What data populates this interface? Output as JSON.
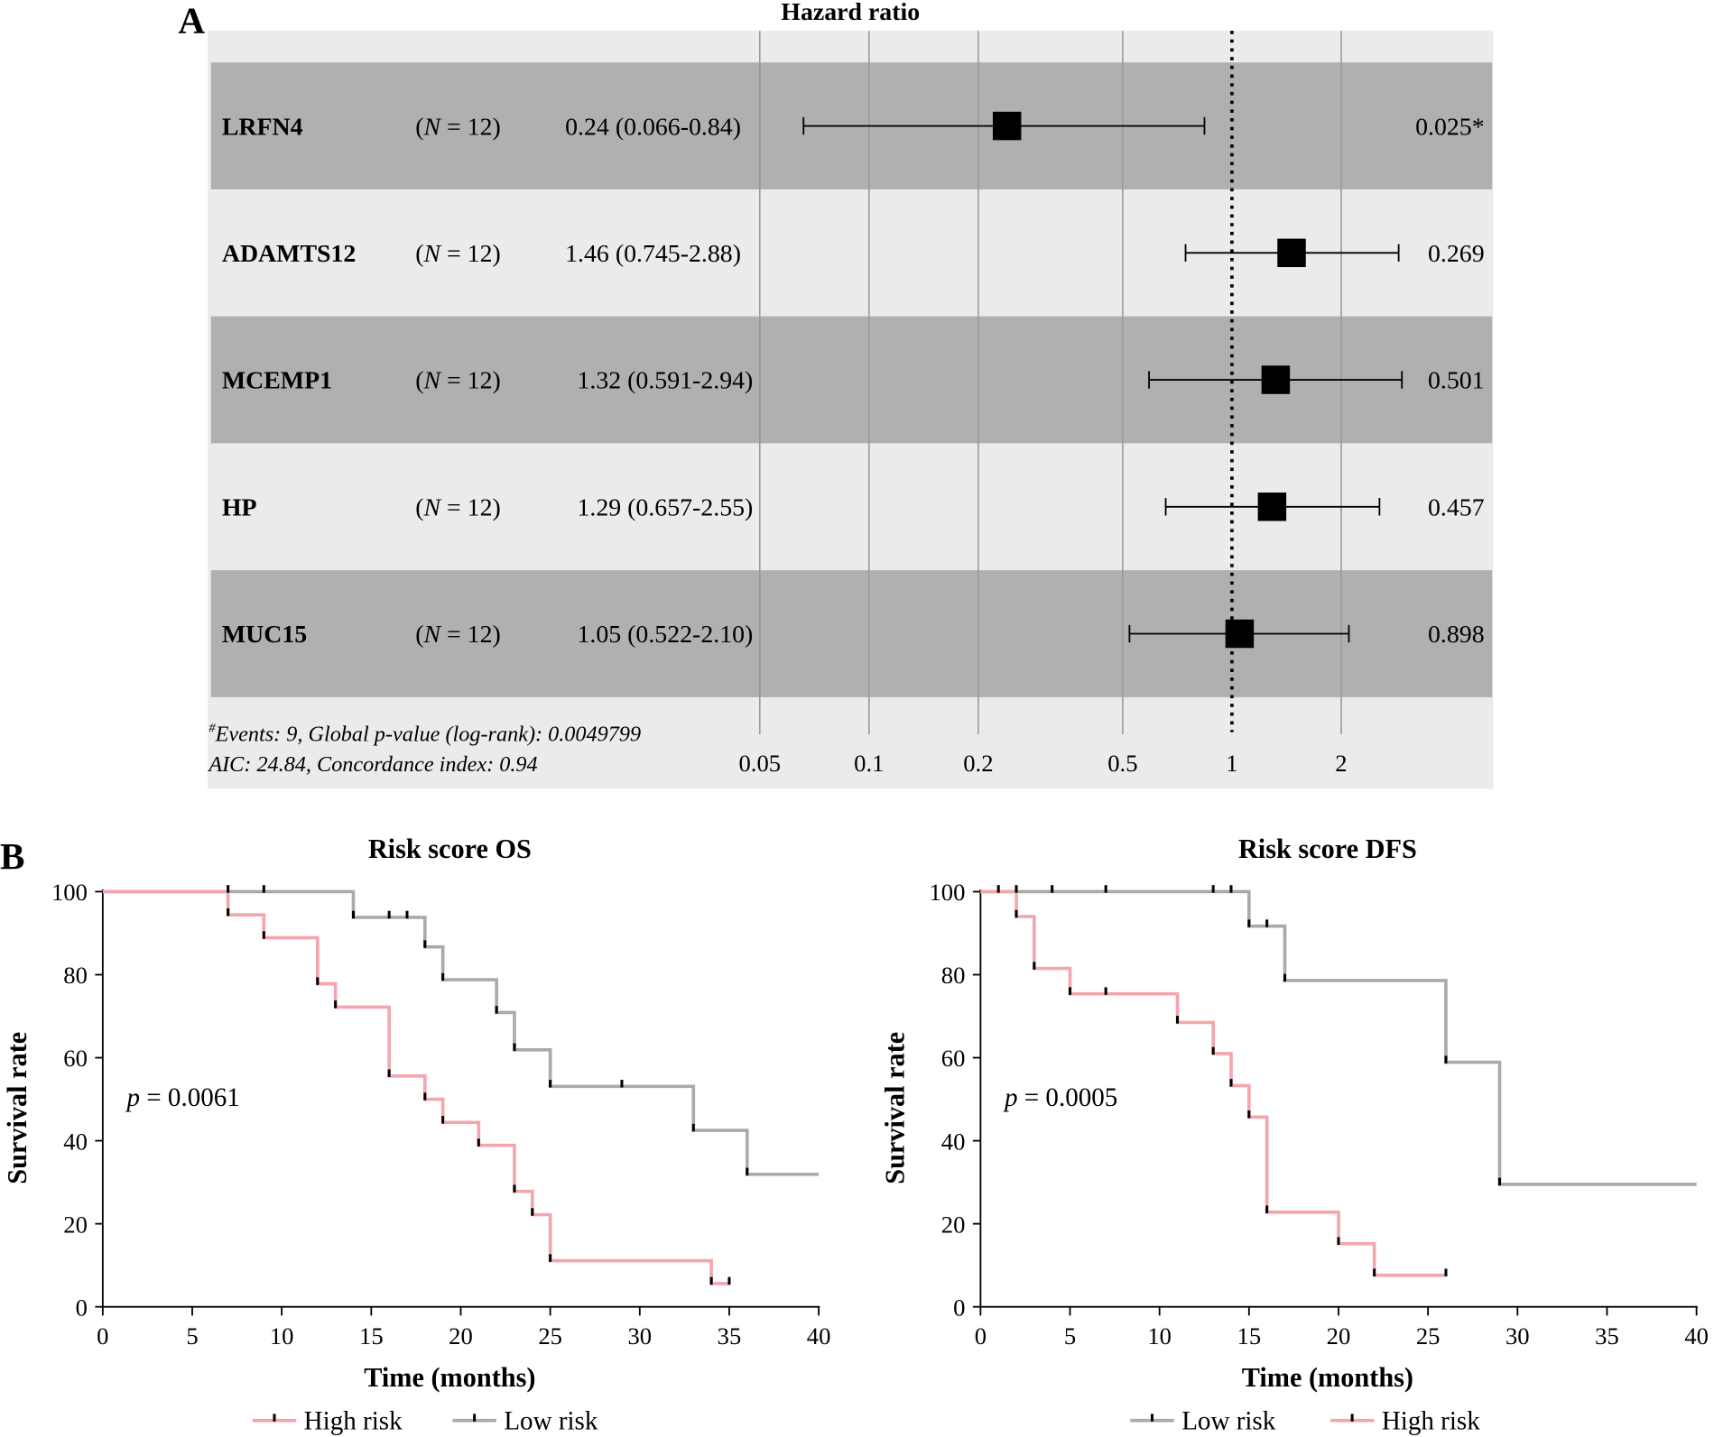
{
  "chart_data": [
    {
      "type": "forest",
      "panel_label": "A",
      "title": "Hazard ratio",
      "x_scale": "log",
      "xticks": [
        "0.05",
        "0.1",
        "0.2",
        "0.5",
        "1",
        "2"
      ],
      "xtick_values": [
        0.05,
        0.1,
        0.2,
        0.5,
        1,
        2
      ],
      "reference_line": 1,
      "rows": [
        {
          "gene": "LRFN4",
          "n": "12",
          "hr_text": "0.24 (0.066-0.84)",
          "hr": 0.24,
          "lo": 0.066,
          "hi": 0.84,
          "p": "0.025*"
        },
        {
          "gene": "ADAMTS12",
          "n": "12",
          "hr_text": "1.46 (0.745-2.88)",
          "hr": 1.46,
          "lo": 0.745,
          "hi": 2.88,
          "p": "0.269"
        },
        {
          "gene": "MCEMP1",
          "n": "12",
          "hr_text": "1.32 (0.591-2.94)",
          "hr": 1.32,
          "lo": 0.591,
          "hi": 2.94,
          "p": "0.501"
        },
        {
          "gene": "HP",
          "n": "12",
          "hr_text": "1.29 (0.657-2.55)",
          "hr": 1.29,
          "lo": 0.657,
          "hi": 2.55,
          "p": "0.457"
        },
        {
          "gene": "MUC15",
          "n": "12",
          "hr_text": "1.05 (0.522-2.10)",
          "hr": 1.05,
          "lo": 0.522,
          "hi": 2.1,
          "p": "0.898"
        }
      ],
      "n_prefix": "N",
      "footnote_line1": "Events: 9, Global p-value (log-rank): 0.0049799",
      "footnote_mark": "#",
      "footnote_line2": "AIC: 24.84, Concordance index: 0.94",
      "colors": {
        "band_dark": "#b0b0b0",
        "band_light": "#ebebeb"
      }
    },
    {
      "type": "line",
      "subtype": "kaplan-meier",
      "panel_label": "B",
      "title": "Risk score OS",
      "xlabel": "Time (months)",
      "ylabel": "Survival rate",
      "xlim": [
        0,
        40
      ],
      "ylim": [
        0,
        100
      ],
      "xticks": [
        0,
        5,
        10,
        15,
        20,
        25,
        30,
        35,
        40
      ],
      "yticks": [
        0,
        20,
        40,
        60,
        80,
        100
      ],
      "annotation": "= 0.0061",
      "annotation_italic": "p",
      "legend_order": [
        "High risk",
        "Low risk"
      ],
      "series": [
        {
          "name": "High risk",
          "color": "#f4a6ae",
          "steps": [
            [
              0,
              100
            ],
            [
              7,
              94.4
            ],
            [
              9,
              88.9
            ],
            [
              12,
              77.8
            ],
            [
              13,
              72.2
            ],
            [
              16,
              55.6
            ],
            [
              18,
              50
            ],
            [
              19,
              44.4
            ],
            [
              21,
              38.9
            ],
            [
              23,
              27.8
            ],
            [
              24,
              22.2
            ],
            [
              25,
              11.1
            ],
            [
              34,
              5.6
            ]
          ],
          "end": 35,
          "censor_marks": [
            7,
            9,
            12,
            13,
            16,
            18,
            19,
            21,
            23,
            24,
            25,
            34,
            35
          ]
        },
        {
          "name": "Low risk",
          "color": "#aaaaaa",
          "steps": [
            [
              0,
              100
            ],
            [
              14,
              93.8
            ],
            [
              18,
              86.7
            ],
            [
              19,
              78.8
            ],
            [
              22,
              70.9
            ],
            [
              23,
              61.9
            ],
            [
              25,
              53.1
            ],
            [
              33,
              42.5
            ],
            [
              36,
              31.9
            ]
          ],
          "end": 40,
          "censor_marks": [
            7,
            9,
            14,
            16,
            17,
            18,
            19,
            22,
            23,
            25,
            29,
            33,
            36
          ]
        }
      ]
    },
    {
      "type": "line",
      "subtype": "kaplan-meier",
      "title": "Risk score DFS",
      "xlabel": "Time (months)",
      "ylabel": "Survival rate",
      "xlim": [
        0,
        40
      ],
      "ylim": [
        0,
        100
      ],
      "xticks": [
        0,
        5,
        10,
        15,
        20,
        25,
        30,
        35,
        40
      ],
      "yticks": [
        0,
        20,
        40,
        60,
        80,
        100
      ],
      "annotation": "= 0.0005",
      "annotation_italic": "p",
      "legend_order": [
        "Low risk",
        "High risk"
      ],
      "series": [
        {
          "name": "Low risk",
          "color": "#aaaaaa",
          "steps": [
            [
              0,
              100
            ],
            [
              15,
              91.7
            ],
            [
              17,
              78.6
            ],
            [
              26,
              58.9
            ],
            [
              29,
              29.5
            ]
          ],
          "end": 40,
          "censor_marks": [
            1,
            2,
            4,
            7,
            13,
            14,
            15,
            16,
            17,
            26,
            29
          ]
        },
        {
          "name": "High risk",
          "color": "#f4a6ae",
          "steps": [
            [
              0,
              100
            ],
            [
              2,
              94
            ],
            [
              3,
              81.5
            ],
            [
              5,
              75.4
            ],
            [
              11,
              68.5
            ],
            [
              13,
              61
            ],
            [
              14,
              53.3
            ],
            [
              15,
              45.7
            ],
            [
              16,
              22.8
            ],
            [
              20,
              15.2
            ],
            [
              22,
              7.6
            ]
          ],
          "end": 26,
          "censor_marks": [
            2,
            3,
            5,
            7,
            11,
            13,
            14,
            15,
            16,
            20,
            22,
            26
          ]
        }
      ]
    }
  ]
}
